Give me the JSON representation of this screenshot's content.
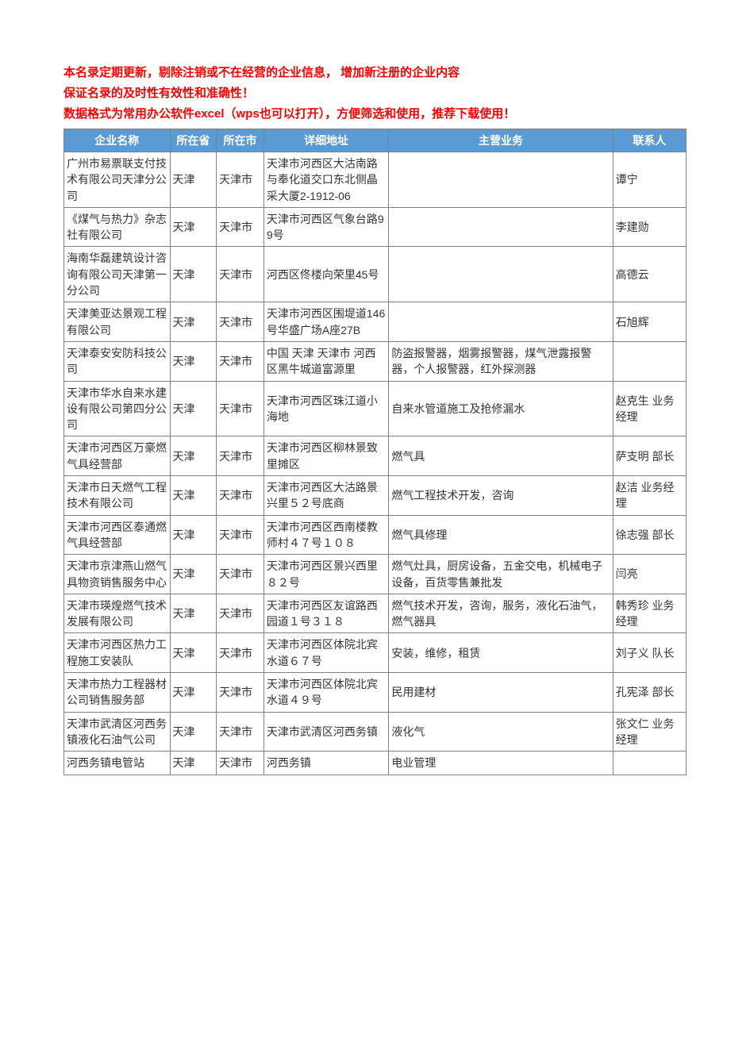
{
  "notice": [
    "本名录定期更新，剔除注销或不在经营的企业信息， 增加新注册的企业内容",
    "保证名录的及时性有效性和准确性！",
    "数据格式为常用办公软件excel（wps也可以打开），方便筛选和使用，推荐下载使用！"
  ],
  "colors": {
    "header_bg": "#5b9bd5",
    "header_fg": "#ffffff",
    "border": "#808080",
    "notice_fg": "#ff0000",
    "body_fg": "#333333",
    "page_bg": "#ffffff"
  },
  "columns": [
    "企业名称",
    "所在省",
    "所在市",
    "详细地址",
    "主营业务",
    "联系人"
  ],
  "rows": [
    {
      "name": "广州市易票联支付技术有限公司天津分公司",
      "prov": "天津",
      "city": "天津市",
      "addr": "天津市河西区大沽南路与奉化道交口东北侧晶采大厦2-1912-06",
      "biz": "",
      "contact": "谭宁"
    },
    {
      "name": "《煤气与热力》杂志社有限公司",
      "prov": "天津",
      "city": "天津市",
      "addr": "天津市河西区气象台路99号",
      "biz": "",
      "contact": "李建勋"
    },
    {
      "name": "海南华磊建筑设计咨询有限公司天津第一分公司",
      "prov": "天津",
      "city": "天津市",
      "addr": "河西区佟楼向荣里45号",
      "biz": "",
      "contact": "高德云"
    },
    {
      "name": "天津美亚达景观工程有限公司",
      "prov": "天津",
      "city": "天津市",
      "addr": "天津市河西区围堤道146号华盛广场A座27B",
      "biz": "",
      "contact": "石旭辉"
    },
    {
      "name": "天津泰安安防科技公司",
      "prov": "天津",
      "city": "天津市",
      "addr": "中国 天津 天津市 河西区黑牛城道富源里",
      "biz": "防盗报警器，烟雾报警器，煤气泄露报警器，个人报警器，红外探测器",
      "contact": ""
    },
    {
      "name": "天津市华水自来水建设有限公司第四分公司",
      "prov": "天津",
      "city": "天津市",
      "addr": "天津市河西区珠江道小海地",
      "biz": "自来水管道施工及抢修漏水",
      "contact": "赵克生 业务经理"
    },
    {
      "name": "天津市河西区万豪燃气具经营部",
      "prov": "天津",
      "city": "天津市",
      "addr": "天津市河西区柳林景致里摊区",
      "biz": "燃气具",
      "contact": "萨支明 部长"
    },
    {
      "name": "天津市日天燃气工程技术有限公司",
      "prov": "天津",
      "city": "天津市",
      "addr": "天津市河西区大沽路景兴里５２号底商",
      "biz": "燃气工程技术开发，咨询",
      "contact": "赵洁 业务经理"
    },
    {
      "name": "天津市河西区泰通燃气具经营部",
      "prov": "天津",
      "city": "天津市",
      "addr": "天津市河西区西南楼教师村４７号１０８",
      "biz": "燃气具修理",
      "contact": "徐志强 部长"
    },
    {
      "name": "天津市京津燕山燃气具物资销售服务中心",
      "prov": "天津",
      "city": "天津市",
      "addr": "天津市河西区景兴西里８２号",
      "biz": "燃气灶具，厨房设备，五金交电，机械电子设备，百货零售兼批发",
      "contact": "闫亮"
    },
    {
      "name": "天津市瑛煌燃气技术发展有限公司",
      "prov": "天津",
      "city": "天津市",
      "addr": "天津市河西区友谊路西园道１号３１８",
      "biz": "燃气技术开发，咨询，服务，液化石油气，燃气器具",
      "contact": "韩秀珍 业务经理"
    },
    {
      "name": "天津市河西区热力工程施工安装队",
      "prov": "天津",
      "city": "天津市",
      "addr": "天津市河西区体院北宾水道６７号",
      "biz": "安装，维修，租赁",
      "contact": "刘子义 队长"
    },
    {
      "name": "天津市热力工程器材公司销售服务部",
      "prov": "天津",
      "city": "天津市",
      "addr": "天津市河西区体院北宾水道４９号",
      "biz": "民用建材",
      "contact": "孔宪泽 部长"
    },
    {
      "name": "天津市武清区河西务镇液化石油气公司",
      "prov": "天津",
      "city": "天津市",
      "addr": "天津市武清区河西务镇",
      "biz": "液化气",
      "contact": "张文仁 业务经理"
    },
    {
      "name": "河西务镇电管站",
      "prov": "天津",
      "city": "天津市",
      "addr": "河西务镇",
      "biz": "电业管理",
      "contact": ""
    }
  ]
}
